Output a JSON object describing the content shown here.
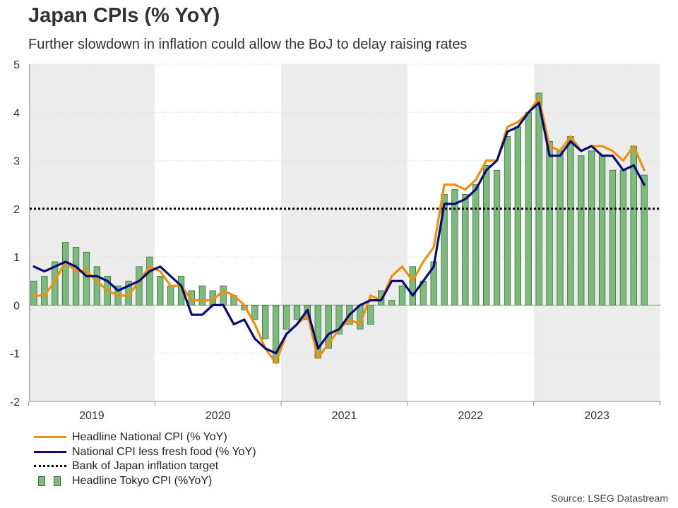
{
  "header": {
    "title": "Japan CPIs (% YoY)",
    "subtitle": "Further slowdown in inflation could allow the BoJ to delay raising rates"
  },
  "source": "Source: LSEG Datastream",
  "colors": {
    "headline_line": "#f0900a",
    "core_line": "#0a0a78",
    "tokyo_bar_fill": "#7dba7d",
    "tokyo_bar_edge": "#356d35",
    "target_line": "#000000",
    "band_shade": "#ececec"
  },
  "chart_data": {
    "type": "bar",
    "title": "Japan CPIs (% YoY)",
    "subtitle": "Further slowdown in inflation could allow the BoJ to delay raising rates",
    "xlabel": "",
    "ylabel": "",
    "ylim": [
      -2,
      5
    ],
    "yticks": [
      -2,
      -1,
      0,
      1,
      2,
      3,
      4,
      5
    ],
    "grid": true,
    "legend_position": "bottom-left",
    "x_start": "2019-01",
    "x_end": "2023-10",
    "year_labels": [
      "2019",
      "2020",
      "2021",
      "2022",
      "2023"
    ],
    "reference_line": {
      "name": "Bank of Japan inflation target",
      "value": 2
    },
    "series": [
      {
        "name": "Headline National CPI (% YoY)",
        "type": "line",
        "values": [
          0.2,
          0.2,
          0.5,
          0.9,
          0.7,
          0.7,
          0.5,
          0.3,
          0.2,
          0.2,
          0.5,
          0.8,
          0.7,
          0.4,
          0.4,
          0.1,
          0.1,
          0.1,
          0.3,
          0.2,
          0.0,
          -0.4,
          -0.9,
          -1.2,
          -0.6,
          -0.4,
          -0.2,
          -1.1,
          -0.8,
          -0.5,
          -0.3,
          -0.4,
          0.2,
          0.1,
          0.6,
          0.8,
          0.5,
          0.9,
          1.2,
          2.5,
          2.5,
          2.4,
          2.6,
          3.0,
          3.0,
          3.7,
          3.8,
          4.0,
          4.3,
          3.3,
          3.2,
          3.5,
          3.2,
          3.3,
          3.3,
          3.2,
          3.0,
          3.3,
          2.8
        ]
      },
      {
        "name": "National CPI less fresh food (% YoY)",
        "type": "line",
        "values": [
          0.8,
          0.7,
          0.8,
          0.9,
          0.8,
          0.6,
          0.6,
          0.5,
          0.3,
          0.4,
          0.5,
          0.7,
          0.8,
          0.6,
          0.4,
          -0.2,
          -0.2,
          0.0,
          0.0,
          -0.4,
          -0.3,
          -0.7,
          -0.9,
          -1.0,
          -0.6,
          -0.4,
          -0.1,
          -0.9,
          -0.6,
          -0.5,
          -0.2,
          0.0,
          0.1,
          0.1,
          0.5,
          0.5,
          0.2,
          0.5,
          0.8,
          2.1,
          2.1,
          2.2,
          2.4,
          2.8,
          3.0,
          3.6,
          3.7,
          4.0,
          4.2,
          3.1,
          3.1,
          3.4,
          3.2,
          3.3,
          3.1,
          3.1,
          2.8,
          2.9,
          2.5
        ]
      },
      {
        "name": "Headline Tokyo CPI (%YoY)",
        "type": "bar",
        "values": [
          0.5,
          0.6,
          0.9,
          1.3,
          1.2,
          1.1,
          0.8,
          0.6,
          0.4,
          0.5,
          0.8,
          1.0,
          0.6,
          0.4,
          0.6,
          0.3,
          0.4,
          0.3,
          0.4,
          0.2,
          -0.1,
          -0.3,
          -0.7,
          -1.2,
          -0.5,
          -0.3,
          -0.3,
          -1.1,
          -0.9,
          -0.6,
          -0.4,
          -0.5,
          -0.4,
          0.3,
          0.1,
          0.4,
          0.8,
          0.5,
          0.9,
          2.3,
          2.4,
          2.3,
          2.5,
          2.9,
          2.8,
          3.5,
          3.7,
          4.0,
          4.4,
          3.4,
          3.2,
          3.5,
          3.1,
          3.2,
          3.1,
          2.8,
          2.8,
          3.3,
          2.7
        ]
      }
    ]
  }
}
